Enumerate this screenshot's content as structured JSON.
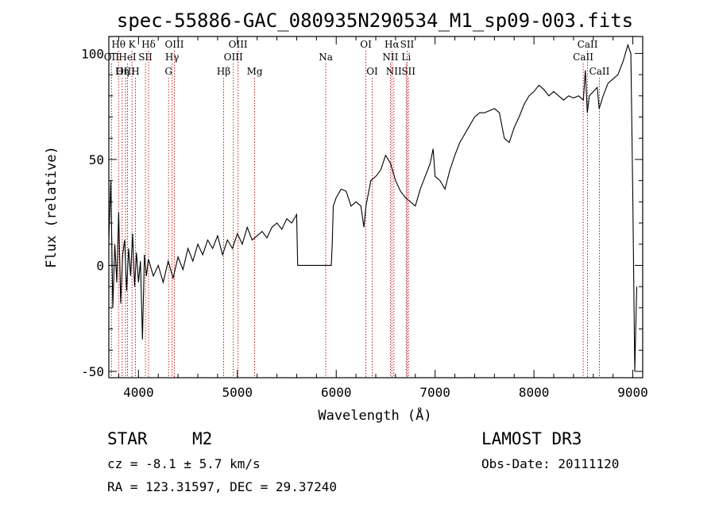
{
  "chart_data": {
    "type": "line",
    "title": "spec-55886-GAC_080935N290534_M1_sp09-003.fits",
    "xlabel": "Wavelength (Å)",
    "ylabel": "Flux (relative)",
    "xlim": [
      3700,
      9100
    ],
    "ylim": [
      -53,
      108
    ],
    "x_ticks": [
      4000,
      5000,
      6000,
      7000,
      8000,
      9000
    ],
    "y_ticks": [
      -50,
      0,
      50,
      100
    ],
    "spectrum": {
      "name": "",
      "points": [
        [
          3700,
          12
        ],
        [
          3720,
          40
        ],
        [
          3740,
          -20
        ],
        [
          3760,
          10
        ],
        [
          3780,
          -8
        ],
        [
          3800,
          25
        ],
        [
          3820,
          -18
        ],
        [
          3840,
          5
        ],
        [
          3860,
          12
        ],
        [
          3880,
          -12
        ],
        [
          3900,
          8
        ],
        [
          3920,
          -5
        ],
        [
          3940,
          15
        ],
        [
          3960,
          -10
        ],
        [
          3980,
          6
        ],
        [
          4000,
          -8
        ],
        [
          4020,
          2
        ],
        [
          4040,
          -35
        ],
        [
          4060,
          5
        ],
        [
          4080,
          -5
        ],
        [
          4100,
          3
        ],
        [
          4150,
          -5
        ],
        [
          4200,
          0
        ],
        [
          4250,
          -8
        ],
        [
          4300,
          2
        ],
        [
          4350,
          -6
        ],
        [
          4400,
          4
        ],
        [
          4450,
          -2
        ],
        [
          4500,
          8
        ],
        [
          4550,
          2
        ],
        [
          4600,
          10
        ],
        [
          4650,
          5
        ],
        [
          4700,
          12
        ],
        [
          4750,
          8
        ],
        [
          4800,
          14
        ],
        [
          4850,
          5
        ],
        [
          4900,
          12
        ],
        [
          4950,
          8
        ],
        [
          5000,
          15
        ],
        [
          5050,
          10
        ],
        [
          5100,
          18
        ],
        [
          5150,
          12
        ],
        [
          5200,
          14
        ],
        [
          5250,
          16
        ],
        [
          5300,
          13
        ],
        [
          5350,
          18
        ],
        [
          5400,
          20
        ],
        [
          5450,
          17
        ],
        [
          5500,
          22
        ],
        [
          5550,
          20
        ],
        [
          5600,
          24
        ],
        [
          5610,
          0
        ],
        [
          5650,
          0
        ],
        [
          5700,
          0
        ],
        [
          5750,
          0
        ],
        [
          5800,
          0
        ],
        [
          5850,
          0
        ],
        [
          5900,
          0
        ],
        [
          5950,
          0
        ],
        [
          5960,
          10
        ],
        [
          5970,
          28
        ],
        [
          6000,
          32
        ],
        [
          6050,
          36
        ],
        [
          6100,
          35
        ],
        [
          6150,
          28
        ],
        [
          6200,
          30
        ],
        [
          6250,
          28
        ],
        [
          6280,
          18
        ],
        [
          6300,
          28
        ],
        [
          6350,
          40
        ],
        [
          6400,
          42
        ],
        [
          6450,
          45
        ],
        [
          6500,
          52
        ],
        [
          6550,
          48
        ],
        [
          6600,
          40
        ],
        [
          6650,
          35
        ],
        [
          6700,
          32
        ],
        [
          6750,
          30
        ],
        [
          6800,
          28
        ],
        [
          6850,
          36
        ],
        [
          6900,
          42
        ],
        [
          6950,
          48
        ],
        [
          6980,
          55
        ],
        [
          7000,
          42
        ],
        [
          7050,
          40
        ],
        [
          7100,
          36
        ],
        [
          7150,
          45
        ],
        [
          7200,
          52
        ],
        [
          7250,
          58
        ],
        [
          7300,
          62
        ],
        [
          7350,
          66
        ],
        [
          7400,
          70
        ],
        [
          7450,
          72
        ],
        [
          7500,
          72
        ],
        [
          7550,
          73
        ],
        [
          7600,
          74
        ],
        [
          7650,
          72
        ],
        [
          7700,
          60
        ],
        [
          7750,
          58
        ],
        [
          7800,
          65
        ],
        [
          7850,
          70
        ],
        [
          7900,
          76
        ],
        [
          7950,
          80
        ],
        [
          8000,
          82
        ],
        [
          8050,
          85
        ],
        [
          8100,
          83
        ],
        [
          8150,
          80
        ],
        [
          8200,
          82
        ],
        [
          8250,
          80
        ],
        [
          8300,
          78
        ],
        [
          8350,
          80
        ],
        [
          8400,
          79
        ],
        [
          8450,
          80
        ],
        [
          8500,
          78
        ],
        [
          8520,
          92
        ],
        [
          8540,
          72
        ],
        [
          8560,
          80
        ],
        [
          8600,
          82
        ],
        [
          8640,
          84
        ],
        [
          8660,
          74
        ],
        [
          8700,
          80
        ],
        [
          8750,
          86
        ],
        [
          8800,
          88
        ],
        [
          8850,
          90
        ],
        [
          8900,
          96
        ],
        [
          8950,
          104
        ],
        [
          8980,
          100
        ],
        [
          9000,
          30
        ],
        [
          9020,
          -50
        ],
        [
          9040,
          -10
        ]
      ]
    },
    "lines": [
      {
        "name": "Hθ",
        "wl": 3798,
        "side": "top",
        "row": 1
      },
      {
        "name": "OII",
        "wl": 3727,
        "side": "top",
        "row": 2
      },
      {
        "name": "OIII",
        "wl": 3869,
        "side": "top",
        "row": 3
      },
      {
        "name": "K",
        "wl": 3934,
        "side": "top",
        "row": 1
      },
      {
        "name": "HeI",
        "wl": 3889,
        "side": "top",
        "row": 2
      },
      {
        "name": "Hη",
        "wl": 3835,
        "side": "top",
        "row": 3
      },
      {
        "name": "SII",
        "wl": 4070,
        "side": "top",
        "row": 2
      },
      {
        "name": "H",
        "wl": 3969,
        "side": "top",
        "row": 3
      },
      {
        "name": "Hδ",
        "wl": 4102,
        "side": "top",
        "row": 1
      },
      {
        "name": "OIII",
        "wl": 4363,
        "side": "top",
        "row": 1
      },
      {
        "name": "Hγ",
        "wl": 4340,
        "side": "top",
        "row": 2
      },
      {
        "name": "G",
        "wl": 4304,
        "side": "top",
        "row": 3
      },
      {
        "name": "Hβ",
        "wl": 4861,
        "side": "top",
        "row": 3
      },
      {
        "name": "OIII",
        "wl": 5007,
        "side": "top",
        "row": 1
      },
      {
        "name": "OIII",
        "wl": 4959,
        "side": "top",
        "row": 2
      },
      {
        "name": "Mg",
        "wl": 5175,
        "side": "top",
        "row": 3
      },
      {
        "name": "Na",
        "wl": 5894,
        "side": "top",
        "row": 2
      },
      {
        "name": "OI",
        "wl": 6300,
        "side": "top",
        "row": 1
      },
      {
        "name": "OI",
        "wl": 6364,
        "side": "top",
        "row": 3
      },
      {
        "name": "Hα",
        "wl": 6563,
        "side": "top",
        "row": 1
      },
      {
        "name": "NII",
        "wl": 6548,
        "side": "top",
        "row": 2
      },
      {
        "name": "NII",
        "wl": 6583,
        "side": "top",
        "row": 3
      },
      {
        "name": "SII",
        "wl": 6717,
        "side": "top",
        "row": 1
      },
      {
        "name": "Li",
        "wl": 6708,
        "side": "top",
        "row": 2
      },
      {
        "name": "SII",
        "wl": 6731,
        "side": "top",
        "row": 3
      },
      {
        "name": "CaII",
        "wl": 8542,
        "side": "top",
        "row": 1
      },
      {
        "name": "CaII",
        "wl": 8498,
        "side": "top",
        "row": 2
      },
      {
        "name": "CaII",
        "wl": 8662,
        "side": "top",
        "row": 3
      }
    ]
  },
  "info": {
    "class": "STAR",
    "subclass": "M2",
    "survey": "LAMOST DR3",
    "cz": "cz = -8.1 ± 5.7 km/s",
    "obs_date": "Obs-Date: 20111120",
    "radec": "RA = 123.31597, DEC =  29.37240"
  },
  "colors": {
    "spectrum": "#000000",
    "line_marker": "#c00000",
    "axes": "#000000"
  }
}
